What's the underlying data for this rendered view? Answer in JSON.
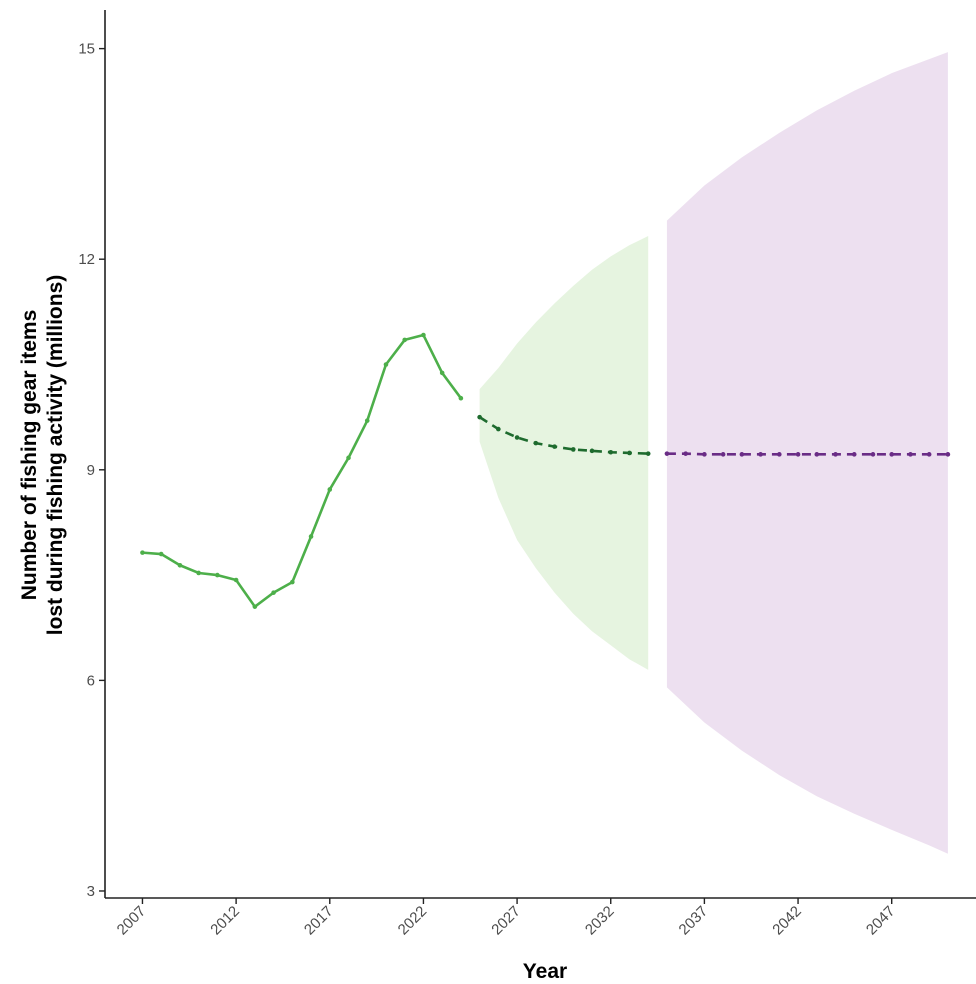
{
  "chart_data": {
    "type": "line",
    "title": "",
    "xlabel": "Year",
    "ylabel_line1": "Number of fishing gear items",
    "ylabel_line2": "lost during fishing activity (millions)",
    "xlim": [
      2005,
      2051.5
    ],
    "ylim": [
      2.9,
      15.55
    ],
    "x_ticks": [
      2007,
      2012,
      2017,
      2022,
      2027,
      2032,
      2037,
      2042,
      2047
    ],
    "y_ticks": [
      3,
      6,
      9,
      12,
      15
    ],
    "grid": false,
    "legend": "none",
    "series": [
      {
        "style": "solid",
        "color": "#4daf4a",
        "x": [
          2007,
          2008,
          2009,
          2010,
          2011,
          2012,
          2013,
          2014,
          2015,
          2016,
          2017,
          2018,
          2019,
          2020,
          2021,
          2022,
          2023,
          2024
        ],
        "y": [
          7.82,
          7.8,
          7.64,
          7.53,
          7.5,
          7.43,
          7.05,
          7.25,
          7.4,
          8.05,
          8.72,
          9.17,
          9.7,
          10.5,
          10.85,
          10.92,
          10.38,
          10.02
        ]
      },
      {
        "style": "dashed",
        "color": "#1e6b2e",
        "x": [
          2025,
          2026,
          2027,
          2028,
          2029,
          2030,
          2031,
          2032,
          2033,
          2034
        ],
        "y": [
          9.75,
          9.58,
          9.46,
          9.38,
          9.33,
          9.29,
          9.27,
          9.25,
          9.24,
          9.23
        ]
      },
      {
        "style": "dashed",
        "color": "#6a2c86",
        "x": [
          2035,
          2036,
          2037,
          2038,
          2039,
          2040,
          2041,
          2042,
          2043,
          2044,
          2045,
          2046,
          2047,
          2048,
          2049,
          2050
        ],
        "y": [
          9.23,
          9.23,
          9.22,
          9.22,
          9.22,
          9.22,
          9.22,
          9.22,
          9.22,
          9.22,
          9.22,
          9.22,
          9.22,
          9.22,
          9.22,
          9.22
        ]
      }
    ],
    "bands": [
      {
        "color": "#e6f4e0",
        "x": [
          2025,
          2026,
          2027,
          2028,
          2029,
          2030,
          2031,
          2032,
          2033,
          2034
        ],
        "upper": [
          10.15,
          10.45,
          10.8,
          11.1,
          11.37,
          11.62,
          11.85,
          12.04,
          12.2,
          12.33
        ],
        "lower": [
          9.4,
          8.6,
          8.0,
          7.6,
          7.25,
          6.95,
          6.7,
          6.5,
          6.3,
          6.15
        ]
      },
      {
        "color": "#ede0f0",
        "x": [
          2035,
          2037,
          2039,
          2041,
          2043,
          2045,
          2047,
          2049,
          2050
        ],
        "upper": [
          12.55,
          13.05,
          13.45,
          13.8,
          14.12,
          14.4,
          14.65,
          14.85,
          14.95
        ],
        "lower": [
          5.9,
          5.4,
          5.0,
          4.65,
          4.35,
          4.1,
          3.87,
          3.65,
          3.53
        ]
      }
    ]
  }
}
